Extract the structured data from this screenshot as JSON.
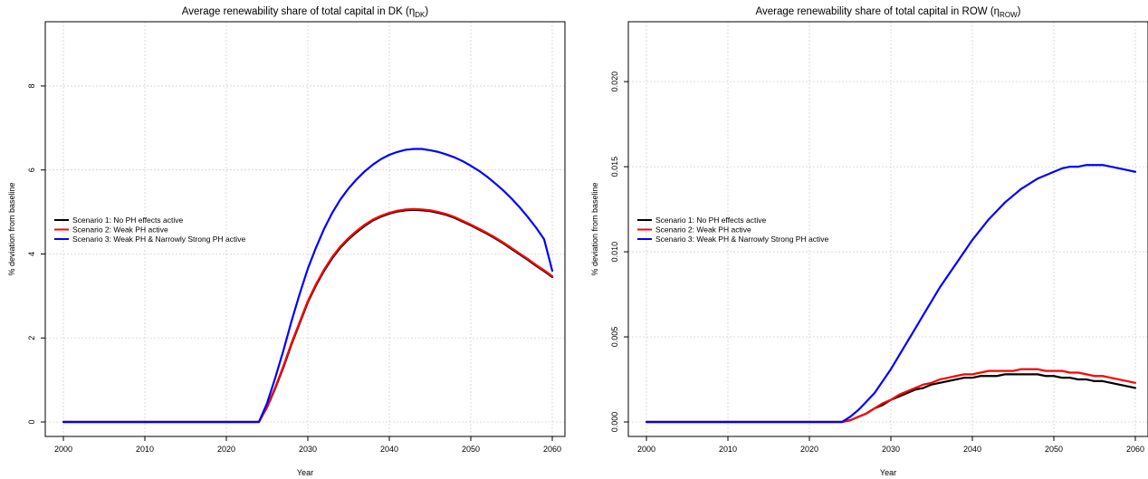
{
  "chart_data": [
    {
      "type": "line",
      "title": "Average renewability share of total capital in DK",
      "title_symbol": "η",
      "title_subscript": "DK",
      "xlabel": "Year",
      "ylabel": "% deviation from baseline",
      "xlim": [
        2000,
        2060
      ],
      "ylim": [
        0,
        9.4
      ],
      "xticks": [
        2000,
        2010,
        2020,
        2030,
        2040,
        2050,
        2060
      ],
      "yticks": [
        0,
        2,
        4,
        6,
        8
      ],
      "ytick_labels": [
        "0",
        "2",
        "4",
        "6",
        "8"
      ],
      "grid": true,
      "legend_position": "left",
      "x": [
        2000,
        2024,
        2025,
        2026,
        2027,
        2028,
        2029,
        2030,
        2031,
        2032,
        2033,
        2034,
        2035,
        2036,
        2037,
        2038,
        2039,
        2040,
        2041,
        2042,
        2043,
        2044,
        2045,
        2046,
        2047,
        2048,
        2049,
        2050,
        2051,
        2052,
        2053,
        2054,
        2055,
        2056,
        2057,
        2058,
        2059,
        2060
      ],
      "series": [
        {
          "name": "Scenario 1: No PH effects active",
          "color": "#000000",
          "values": [
            0,
            0,
            0.35,
            0.8,
            1.3,
            1.85,
            2.35,
            2.85,
            3.25,
            3.6,
            3.9,
            4.15,
            4.35,
            4.52,
            4.67,
            4.8,
            4.89,
            4.96,
            5.01,
            5.04,
            5.05,
            5.04,
            5.02,
            4.98,
            4.93,
            4.86,
            4.77,
            4.68,
            4.58,
            4.48,
            4.37,
            4.25,
            4.12,
            3.99,
            3.86,
            3.72,
            3.59,
            3.45
          ]
        },
        {
          "name": "Scenario 2: Weak PH active",
          "color": "#ff0000",
          "values": [
            0,
            0,
            0.36,
            0.82,
            1.33,
            1.88,
            2.38,
            2.88,
            3.28,
            3.63,
            3.93,
            4.18,
            4.38,
            4.55,
            4.7,
            4.82,
            4.91,
            4.98,
            5.03,
            5.06,
            5.07,
            5.06,
            5.04,
            5.0,
            4.95,
            4.88,
            4.79,
            4.7,
            4.6,
            4.5,
            4.39,
            4.27,
            4.14,
            4.01,
            3.88,
            3.74,
            3.61,
            3.47
          ]
        },
        {
          "name": "Scenario 3: Weak PH & Narrowly Strong PH active",
          "color": "#0000ff",
          "values": [
            0,
            0,
            0.45,
            1.05,
            1.7,
            2.4,
            3.05,
            3.65,
            4.15,
            4.6,
            4.98,
            5.3,
            5.56,
            5.78,
            5.97,
            6.13,
            6.26,
            6.36,
            6.43,
            6.48,
            6.5,
            6.5,
            6.47,
            6.43,
            6.37,
            6.3,
            6.21,
            6.1,
            5.98,
            5.84,
            5.68,
            5.51,
            5.32,
            5.11,
            4.88,
            4.63,
            4.35,
            3.6
          ]
        }
      ]
    },
    {
      "type": "line",
      "title": "Average renewability share of total capital in ROW",
      "title_symbol": "η",
      "title_subscript": "ROW",
      "xlabel": "Year",
      "ylabel": "% deviation from baseline",
      "xlim": [
        2000,
        2060
      ],
      "ylim": [
        0,
        0.0232
      ],
      "xticks": [
        2000,
        2010,
        2020,
        2030,
        2040,
        2050,
        2060
      ],
      "yticks": [
        0,
        0.005,
        0.01,
        0.015,
        0.02
      ],
      "ytick_labels": [
        "0.000",
        "0.005",
        "0.010",
        "0.015",
        "0.020"
      ],
      "grid": true,
      "legend_position": "left",
      "x": [
        2000,
        2024,
        2025,
        2026,
        2027,
        2028,
        2029,
        2030,
        2031,
        2032,
        2033,
        2034,
        2035,
        2036,
        2037,
        2038,
        2039,
        2040,
        2041,
        2042,
        2043,
        2044,
        2045,
        2046,
        2047,
        2048,
        2049,
        2050,
        2051,
        2052,
        2053,
        2054,
        2055,
        2056,
        2057,
        2058,
        2059,
        2060
      ],
      "series": [
        {
          "name": "Scenario 1: No PH effects active",
          "color": "#000000",
          "values": [
            0,
            0,
            0.0001,
            0.0003,
            0.0005,
            0.0008,
            0.001,
            0.0013,
            0.0015,
            0.0017,
            0.0019,
            0.002,
            0.0022,
            0.0023,
            0.0024,
            0.0025,
            0.0026,
            0.0026,
            0.0027,
            0.0027,
            0.0027,
            0.0028,
            0.0028,
            0.0028,
            0.0028,
            0.0028,
            0.0027,
            0.0027,
            0.0026,
            0.0026,
            0.0025,
            0.0025,
            0.0024,
            0.0024,
            0.0023,
            0.0022,
            0.0021,
            0.002
          ]
        },
        {
          "name": "Scenario 2: Weak PH active",
          "color": "#ff0000",
          "values": [
            0,
            0,
            0.0001,
            0.0003,
            0.0005,
            0.0008,
            0.0011,
            0.0013,
            0.0016,
            0.0018,
            0.002,
            0.0022,
            0.0023,
            0.0025,
            0.0026,
            0.0027,
            0.0028,
            0.0028,
            0.0029,
            0.003,
            0.003,
            0.003,
            0.003,
            0.0031,
            0.0031,
            0.0031,
            0.003,
            0.003,
            0.003,
            0.0029,
            0.0029,
            0.0028,
            0.0027,
            0.0027,
            0.0026,
            0.0025,
            0.0024,
            0.0023
          ]
        },
        {
          "name": "Scenario 3: Weak PH & Narrowly Strong PH active",
          "color": "#0000ff",
          "values": [
            0,
            0,
            0.0003,
            0.0007,
            0.0012,
            0.0017,
            0.0024,
            0.0031,
            0.0039,
            0.0047,
            0.0055,
            0.0063,
            0.0071,
            0.0079,
            0.0086,
            0.0093,
            0.01,
            0.0107,
            0.0113,
            0.0119,
            0.0124,
            0.0129,
            0.0133,
            0.0137,
            0.014,
            0.0143,
            0.0145,
            0.0147,
            0.0149,
            0.015,
            0.015,
            0.0151,
            0.0151,
            0.0151,
            0.015,
            0.0149,
            0.0148,
            0.0147
          ]
        }
      ]
    }
  ]
}
